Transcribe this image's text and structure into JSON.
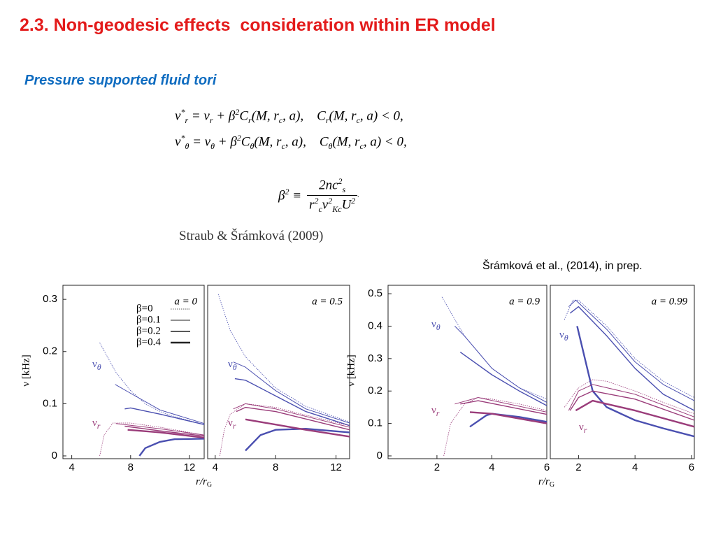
{
  "title": "2.3. Non-geodesic effects  consideration within ER model",
  "subtitle": "Pressure supported fluid tori",
  "equations": [
    [
      {
        "text": "ν"
      },
      {
        "sup": "*"
      },
      {
        "sub": "r"
      },
      {
        "text": " = ν"
      },
      {
        "sub": "r"
      },
      {
        "text": " + β"
      },
      {
        "sup": "2"
      },
      {
        "text": "C"
      },
      {
        "sub": "r"
      },
      {
        "text": "(M, r"
      },
      {
        "sub": "c"
      },
      {
        "text": ", a),    C"
      },
      {
        "sub": "r"
      },
      {
        "text": "(M, r"
      },
      {
        "sub": "c"
      },
      {
        "text": ", a) < 0,"
      }
    ],
    [
      {
        "text": "ν"
      },
      {
        "sup": "*"
      },
      {
        "sub": "θ"
      },
      {
        "text": " = ν"
      },
      {
        "sub": "θ"
      },
      {
        "text": " + β"
      },
      {
        "sup": "2"
      },
      {
        "text": "C"
      },
      {
        "sub": "θ"
      },
      {
        "text": "(M, r"
      },
      {
        "sub": "c"
      },
      {
        "text": ", a),    C"
      },
      {
        "sub": "θ"
      },
      {
        "text": "(M, r"
      },
      {
        "sub": "c"
      },
      {
        "text": ", a) < 0,"
      }
    ]
  ],
  "definition": {
    "lhs": [
      {
        "text": "β"
      },
      {
        "sup": "2"
      },
      {
        "text": " ≡"
      }
    ],
    "numerator": [
      {
        "text": "2nc"
      },
      {
        "sup": "2"
      },
      {
        "sub": "s"
      }
    ],
    "denominator": [
      {
        "text": "r"
      },
      {
        "sup": "2"
      },
      {
        "sub": "c"
      },
      {
        "text": "ν"
      },
      {
        "sup": "2"
      },
      {
        "sub": "Kc"
      },
      {
        "text": "U"
      },
      {
        "sup": "2"
      }
    ],
    "tail": "."
  },
  "citation_left": "Straub & Šrámková (2009)",
  "citation_right": "Šrámková et al., (2014), in prep.",
  "chart_data": [
    {
      "type": "line",
      "annotation": "a = 0",
      "xlim": [
        3.4,
        13
      ],
      "ylim": [
        0,
        0.327
      ],
      "xticks": [
        4,
        8,
        12
      ],
      "yticks": [
        0,
        0.1,
        0.2,
        0.3
      ],
      "ylabel": "ν [kHz]",
      "xlabel": {
        "text": "r/r",
        "sub": "G"
      },
      "curve_labels": [
        {
          "symbol": "ν",
          "sub": "θ"
        },
        {
          "symbol": "ν",
          "sub": "r"
        }
      ],
      "legend": [
        {
          "label": "β=0",
          "width": 0.8,
          "dashed": true
        },
        {
          "label": "β=0.1",
          "width": 1,
          "dashed": false
        },
        {
          "label": "β=0.2",
          "width": 1.4,
          "dashed": false
        },
        {
          "label": "β=0.4",
          "width": 2.4,
          "dashed": false
        }
      ],
      "series": [
        {
          "color": "#4a4fb0",
          "width": 0.8,
          "dashed": true,
          "x": [
            5.9,
            7,
            8,
            9,
            10,
            11,
            13
          ],
          "values": [
            0.217,
            0.16,
            0.125,
            0.1,
            0.085,
            0.075,
            0.06
          ]
        },
        {
          "color": "#4a4fb0",
          "width": 1,
          "dashed": false,
          "x": [
            6.95,
            8,
            10,
            13
          ],
          "values": [
            0.137,
            0.12,
            0.088,
            0.062
          ]
        },
        {
          "color": "#4a4fb0",
          "width": 1.4,
          "dashed": false,
          "x": [
            7.6,
            8,
            10,
            13
          ],
          "values": [
            0.09,
            0.092,
            0.08,
            0.06
          ]
        },
        {
          "color": "#4a4fb0",
          "width": 2.4,
          "dashed": false,
          "x": [
            8.6,
            9,
            10,
            11,
            13
          ],
          "values": [
            0,
            0.015,
            0.027,
            0.032,
            0.033
          ]
        },
        {
          "color": "#9a3c7a",
          "width": 0.8,
          "dashed": true,
          "x": [
            5.9,
            6.2,
            6.8,
            8,
            10,
            13
          ],
          "values": [
            0,
            0.04,
            0.063,
            0.063,
            0.055,
            0.04
          ]
        },
        {
          "color": "#9a3c7a",
          "width": 1,
          "dashed": false,
          "x": [
            7,
            10,
            13
          ],
          "values": [
            0.062,
            0.052,
            0.04
          ]
        },
        {
          "color": "#9a3c7a",
          "width": 1.4,
          "dashed": false,
          "x": [
            7.6,
            10,
            13
          ],
          "values": [
            0.057,
            0.048,
            0.038
          ]
        },
        {
          "color": "#9a3c7a",
          "width": 2.4,
          "dashed": false,
          "x": [
            7.8,
            10,
            13
          ],
          "values": [
            0.05,
            0.045,
            0.035
          ]
        }
      ]
    },
    {
      "type": "line",
      "annotation": "a = 0.5",
      "xlim": [
        3.5,
        12.9
      ],
      "ylim": [
        0,
        0.327
      ],
      "xticks": [
        4,
        8,
        12
      ],
      "curve_labels": [
        {
          "symbol": "ν",
          "sub": "θ"
        },
        {
          "symbol": "ν",
          "sub": "r"
        }
      ],
      "series": [
        {
          "color": "#4a4fb0",
          "width": 0.8,
          "dashed": true,
          "x": [
            4.2,
            5,
            6,
            8,
            10,
            12.9
          ],
          "values": [
            0.31,
            0.24,
            0.19,
            0.13,
            0.095,
            0.065
          ]
        },
        {
          "color": "#4a4fb0",
          "width": 1,
          "dashed": false,
          "x": [
            5.2,
            6,
            8,
            10,
            12.9
          ],
          "values": [
            0.18,
            0.17,
            0.125,
            0.09,
            0.063
          ]
        },
        {
          "color": "#4a4fb0",
          "width": 1.4,
          "dashed": false,
          "x": [
            5.3,
            6,
            8,
            10,
            12.9
          ],
          "values": [
            0.148,
            0.145,
            0.115,
            0.085,
            0.058
          ]
        },
        {
          "color": "#4a4fb0",
          "width": 2.4,
          "dashed": false,
          "x": [
            6,
            7,
            8,
            10,
            12.9
          ],
          "values": [
            0.01,
            0.04,
            0.05,
            0.052,
            0.045
          ]
        },
        {
          "color": "#9a3c7a",
          "width": 0.8,
          "dashed": true,
          "x": [
            4.3,
            4.6,
            5,
            6,
            8,
            10,
            12.9
          ],
          "values": [
            0,
            0.05,
            0.08,
            0.1,
            0.093,
            0.078,
            0.058
          ]
        },
        {
          "color": "#9a3c7a",
          "width": 1,
          "dashed": false,
          "x": [
            5.2,
            6,
            8,
            12.9
          ],
          "values": [
            0.09,
            0.1,
            0.09,
            0.055
          ]
        },
        {
          "color": "#9a3c7a",
          "width": 1.4,
          "dashed": false,
          "x": [
            5.4,
            6,
            8,
            12.9
          ],
          "values": [
            0.085,
            0.093,
            0.085,
            0.05
          ]
        },
        {
          "color": "#9a3c7a",
          "width": 2.4,
          "dashed": false,
          "x": [
            6,
            8,
            10,
            12.9
          ],
          "values": [
            0.07,
            0.06,
            0.05,
            0.037
          ]
        }
      ]
    },
    {
      "type": "line",
      "annotation": "a = 0.9",
      "xlim": [
        0.22,
        6
      ],
      "ylim": [
        0,
        0.526
      ],
      "xticks": [
        2,
        4,
        6
      ],
      "yticks": [
        0,
        0.1,
        0.2,
        0.3,
        0.4,
        0.5
      ],
      "ylabel": "ν [kHz]",
      "xlabel": {
        "text": "r/r",
        "sub": "G"
      },
      "curve_labels": [
        {
          "symbol": "ν",
          "sub": "θ"
        },
        {
          "symbol": "ν",
          "sub": "r"
        }
      ],
      "series": [
        {
          "color": "#4a4fb0",
          "width": 0.8,
          "dashed": true,
          "x": [
            2.18,
            3,
            4,
            5,
            6
          ],
          "values": [
            0.49,
            0.37,
            0.27,
            0.21,
            0.175
          ]
        },
        {
          "color": "#4a4fb0",
          "width": 1,
          "dashed": false,
          "x": [
            2.65,
            3,
            4,
            5,
            6
          ],
          "values": [
            0.4,
            0.37,
            0.27,
            0.21,
            0.165
          ]
        },
        {
          "color": "#4a4fb0",
          "width": 1.4,
          "dashed": false,
          "x": [
            2.85,
            4,
            5,
            6
          ],
          "values": [
            0.32,
            0.25,
            0.2,
            0.155
          ]
        },
        {
          "color": "#4a4fb0",
          "width": 2.4,
          "dashed": false,
          "x": [
            3.2,
            3.8,
            4,
            5,
            6
          ],
          "values": [
            0.09,
            0.125,
            0.13,
            0.12,
            0.105
          ]
        },
        {
          "color": "#9a3c7a",
          "width": 0.8,
          "dashed": true,
          "x": [
            2.25,
            2.5,
            3,
            3.5,
            4,
            5,
            6
          ],
          "values": [
            0,
            0.1,
            0.16,
            0.18,
            0.175,
            0.16,
            0.14
          ]
        },
        {
          "color": "#9a3c7a",
          "width": 1,
          "dashed": false,
          "x": [
            2.65,
            3.5,
            6
          ],
          "values": [
            0.16,
            0.18,
            0.135
          ]
        },
        {
          "color": "#9a3c7a",
          "width": 1.4,
          "dashed": false,
          "x": [
            2.85,
            3.5,
            6
          ],
          "values": [
            0.16,
            0.17,
            0.128
          ]
        },
        {
          "color": "#9a3c7a",
          "width": 2.4,
          "dashed": false,
          "x": [
            3.2,
            4,
            6
          ],
          "values": [
            0.135,
            0.13,
            0.1
          ]
        }
      ]
    },
    {
      "type": "line",
      "annotation": "a = 0.99",
      "xlim": [
        1,
        6.1
      ],
      "ylim": [
        0,
        0.526
      ],
      "xticks": [
        2,
        4,
        6
      ],
      "curve_labels": [
        {
          "symbol": "ν",
          "sub": "θ"
        },
        {
          "symbol": "ν",
          "sub": "r"
        }
      ],
      "series": [
        {
          "color": "#4a4fb0",
          "width": 0.8,
          "dashed": true,
          "x": [
            1.5,
            1.8,
            2,
            3,
            4,
            5,
            6.1
          ],
          "values": [
            0.42,
            0.48,
            0.48,
            0.4,
            0.3,
            0.23,
            0.18
          ]
        },
        {
          "color": "#4a4fb0",
          "width": 1,
          "dashed": false,
          "x": [
            1.65,
            1.9,
            3,
            4,
            5,
            6.1
          ],
          "values": [
            0.46,
            0.48,
            0.39,
            0.29,
            0.22,
            0.17
          ]
        },
        {
          "color": "#4a4fb0",
          "width": 1.4,
          "dashed": false,
          "x": [
            1.7,
            2,
            3,
            4,
            5,
            6.1
          ],
          "values": [
            0.44,
            0.46,
            0.37,
            0.27,
            0.19,
            0.14
          ]
        },
        {
          "color": "#4a4fb0",
          "width": 2.4,
          "dashed": false,
          "x": [
            1.95,
            2.5,
            3,
            4,
            5,
            6.1
          ],
          "values": [
            0.4,
            0.2,
            0.15,
            0.11,
            0.085,
            0.06
          ]
        },
        {
          "color": "#9a3c7a",
          "width": 0.8,
          "dashed": true,
          "x": [
            1.5,
            2,
            2.5,
            3,
            4,
            5,
            6.1
          ],
          "values": [
            0.15,
            0.21,
            0.235,
            0.23,
            0.2,
            0.165,
            0.13
          ]
        },
        {
          "color": "#9a3c7a",
          "width": 1,
          "dashed": false,
          "x": [
            1.65,
            2,
            2.5,
            4,
            6.1
          ],
          "values": [
            0.14,
            0.2,
            0.22,
            0.19,
            0.12
          ]
        },
        {
          "color": "#9a3c7a",
          "width": 1.4,
          "dashed": false,
          "x": [
            1.7,
            2,
            2.5,
            4,
            6.1
          ],
          "values": [
            0.14,
            0.18,
            0.2,
            0.175,
            0.11
          ]
        },
        {
          "color": "#9a3c7a",
          "width": 2.4,
          "dashed": false,
          "x": [
            1.9,
            2.5,
            4,
            6.1
          ],
          "values": [
            0.14,
            0.17,
            0.14,
            0.09
          ]
        }
      ]
    }
  ]
}
